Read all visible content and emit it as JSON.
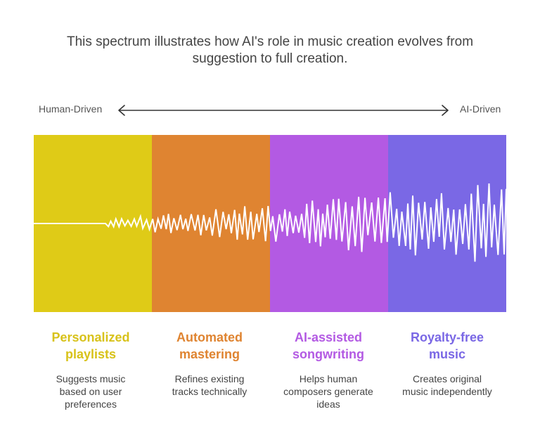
{
  "title": {
    "line1": "This spectrum illustrates how AI's role in music creation evolves from",
    "line2": "suggestion to full creation."
  },
  "axis": {
    "left_label": "Human-Driven",
    "right_label": "AI-Driven"
  },
  "stages": [
    {
      "head_lines": [
        "Personalized",
        "playlists"
      ],
      "desc_lines": [
        "Suggests music",
        "based on user",
        "preferences"
      ],
      "color": "#DFCB17",
      "head_color": "#D8C21A"
    },
    {
      "head_lines": [
        "Automated",
        "mastering"
      ],
      "desc_lines": [
        "Refines existing",
        "tracks technically"
      ],
      "color": "#DF8431",
      "head_color": "#DF8431"
    },
    {
      "head_lines": [
        "AI-assisted",
        "songwriting"
      ],
      "desc_lines": [
        "Helps human",
        "composers generate",
        "ideas"
      ],
      "color": "#B35AE3",
      "head_color": "#B35AE3"
    },
    {
      "head_lines": [
        "Royalty-free",
        "music"
      ],
      "desc_lines": [
        "Creates original",
        "music independently"
      ],
      "color": "#7A68E5",
      "head_color": "#7A68E5"
    }
  ],
  "wave_color": "#FFFFFF"
}
